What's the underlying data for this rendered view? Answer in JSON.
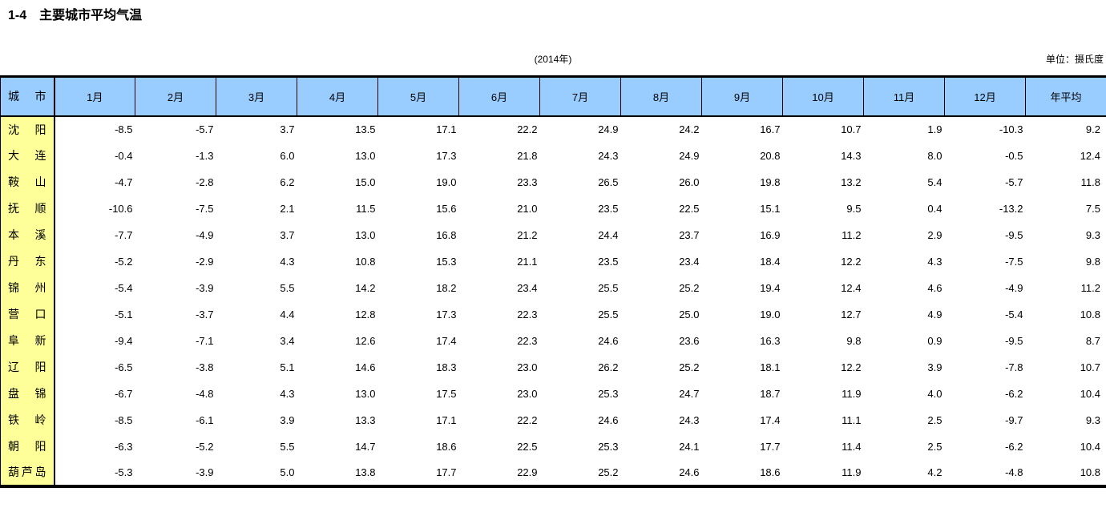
{
  "page": {
    "title": "1-4　主要城市平均气温",
    "year_caption": "(2014年)",
    "unit_label": "单位：摄氏度"
  },
  "colors": {
    "header_bg": "#99CCFF",
    "city_column_bg": "#FFFF99",
    "border": "#000000",
    "text": "#000000"
  },
  "table": {
    "city_header": "城市",
    "month_headers": [
      "1月",
      "2月",
      "3月",
      "4月",
      "5月",
      "6月",
      "7月",
      "8月",
      "9月",
      "10月",
      "11月",
      "12月"
    ],
    "annual_header": "年平均",
    "rows": [
      {
        "city": "沈阳",
        "values": [
          "-8.5",
          "-5.7",
          "3.7",
          "13.5",
          "17.1",
          "22.2",
          "24.9",
          "24.2",
          "16.7",
          "10.7",
          "1.9",
          "-10.3",
          "9.2"
        ]
      },
      {
        "city": "大连",
        "values": [
          "-0.4",
          "-1.3",
          "6.0",
          "13.0",
          "17.3",
          "21.8",
          "24.3",
          "24.9",
          "20.8",
          "14.3",
          "8.0",
          "-0.5",
          "12.4"
        ]
      },
      {
        "city": "鞍山",
        "values": [
          "-4.7",
          "-2.8",
          "6.2",
          "15.0",
          "19.0",
          "23.3",
          "26.5",
          "26.0",
          "19.8",
          "13.2",
          "5.4",
          "-5.7",
          "11.8"
        ]
      },
      {
        "city": "抚顺",
        "values": [
          "-10.6",
          "-7.5",
          "2.1",
          "11.5",
          "15.6",
          "21.0",
          "23.5",
          "22.5",
          "15.1",
          "9.5",
          "0.4",
          "-13.2",
          "7.5"
        ]
      },
      {
        "city": "本溪",
        "values": [
          "-7.7",
          "-4.9",
          "3.7",
          "13.0",
          "16.8",
          "21.2",
          "24.4",
          "23.7",
          "16.9",
          "11.2",
          "2.9",
          "-9.5",
          "9.3"
        ]
      },
      {
        "city": "丹东",
        "values": [
          "-5.2",
          "-2.9",
          "4.3",
          "10.8",
          "15.3",
          "21.1",
          "23.5",
          "23.4",
          "18.4",
          "12.2",
          "4.3",
          "-7.5",
          "9.8"
        ]
      },
      {
        "city": "锦州",
        "values": [
          "-5.4",
          "-3.9",
          "5.5",
          "14.2",
          "18.2",
          "23.4",
          "25.5",
          "25.2",
          "19.4",
          "12.4",
          "4.6",
          "-4.9",
          "11.2"
        ]
      },
      {
        "city": "营口",
        "values": [
          "-5.1",
          "-3.7",
          "4.4",
          "12.8",
          "17.3",
          "22.3",
          "25.5",
          "25.0",
          "19.0",
          "12.7",
          "4.9",
          "-5.4",
          "10.8"
        ]
      },
      {
        "city": "阜新",
        "values": [
          "-9.4",
          "-7.1",
          "3.4",
          "12.6",
          "17.4",
          "22.3",
          "24.6",
          "23.6",
          "16.3",
          "9.8",
          "0.9",
          "-9.5",
          "8.7"
        ]
      },
      {
        "city": "辽阳",
        "values": [
          "-6.5",
          "-3.8",
          "5.1",
          "14.6",
          "18.3",
          "23.0",
          "26.2",
          "25.2",
          "18.1",
          "12.2",
          "3.9",
          "-7.8",
          "10.7"
        ]
      },
      {
        "city": "盘锦",
        "values": [
          "-6.7",
          "-4.8",
          "4.3",
          "13.0",
          "17.5",
          "23.0",
          "25.3",
          "24.7",
          "18.7",
          "11.9",
          "4.0",
          "-6.2",
          "10.4"
        ]
      },
      {
        "city": "铁岭",
        "values": [
          "-8.5",
          "-6.1",
          "3.9",
          "13.3",
          "17.1",
          "22.2",
          "24.6",
          "24.3",
          "17.4",
          "11.1",
          "2.5",
          "-9.7",
          "9.3"
        ]
      },
      {
        "city": "朝阳",
        "values": [
          "-6.3",
          "-5.2",
          "5.5",
          "14.7",
          "18.6",
          "22.5",
          "25.3",
          "24.1",
          "17.7",
          "11.4",
          "2.5",
          "-6.2",
          "10.4"
        ]
      },
      {
        "city": "葫芦岛",
        "values": [
          "-5.3",
          "-3.9",
          "5.0",
          "13.8",
          "17.7",
          "22.9",
          "25.2",
          "24.6",
          "18.6",
          "11.9",
          "4.2",
          "-4.8",
          "10.8"
        ]
      }
    ]
  }
}
